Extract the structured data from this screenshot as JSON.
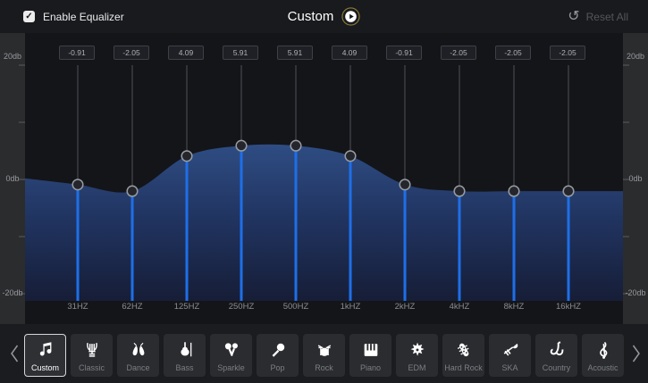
{
  "header": {
    "enable_label": "Enable Equalizer",
    "enabled": true,
    "check_glyph": "✓",
    "preset_title": "Custom",
    "reset_label": "Reset All",
    "undo_glyph": "↺"
  },
  "equalizer": {
    "axis": {
      "top": "20db",
      "mid": "0db",
      "bottom": "-20db"
    },
    "bands": [
      {
        "freq": "31HZ",
        "value": -0.91,
        "label": "-0.91"
      },
      {
        "freq": "62HZ",
        "value": -2.05,
        "label": "-2.05"
      },
      {
        "freq": "125HZ",
        "value": 4.09,
        "label": "4.09"
      },
      {
        "freq": "250HZ",
        "value": 5.91,
        "label": "5.91"
      },
      {
        "freq": "500HZ",
        "value": 5.91,
        "label": "5.91"
      },
      {
        "freq": "1kHZ",
        "value": 4.09,
        "label": "4.09"
      },
      {
        "freq": "2kHZ",
        "value": -0.91,
        "label": "-0.91"
      },
      {
        "freq": "4kHZ",
        "value": -2.05,
        "label": "-2.05"
      },
      {
        "freq": "8kHZ",
        "value": -2.05,
        "label": "-2.05"
      },
      {
        "freq": "16kHZ",
        "value": -2.05,
        "label": "-2.05"
      }
    ],
    "colors": {
      "slider_blue": "#1e6fe8",
      "fill_top": "#2f4e85",
      "fill_mid": "#20335f",
      "fill_bottom": "#161d36",
      "track_gray": "#46484c",
      "handle_ring": "#989ca2",
      "handle_fill": "#24262b"
    }
  },
  "presets": {
    "items": [
      {
        "label": "Custom",
        "icon": "music-note-icon",
        "selected": true
      },
      {
        "label": "Classic",
        "icon": "lyre-icon",
        "selected": false
      },
      {
        "label": "Dance",
        "icon": "ballet-shoes-icon",
        "selected": false
      },
      {
        "label": "Bass",
        "icon": "cello-icon",
        "selected": false
      },
      {
        "label": "Sparkle",
        "icon": "maracas-icon",
        "selected": false
      },
      {
        "label": "Pop",
        "icon": "microphone-icon",
        "selected": false
      },
      {
        "label": "Rock",
        "icon": "drum-kit-icon",
        "selected": false
      },
      {
        "label": "Piano",
        "icon": "piano-keys-icon",
        "selected": false
      },
      {
        "label": "EDM",
        "icon": "electric-guitar-icon",
        "selected": false
      },
      {
        "label": "Hard Rock",
        "icon": "guitar-headstock-icon",
        "selected": false
      },
      {
        "label": "SKA",
        "icon": "trombone-icon",
        "selected": false
      },
      {
        "label": "Country",
        "icon": "saxophone-icon",
        "selected": false
      },
      {
        "label": "Acoustic",
        "icon": "treble-clef-icon",
        "selected": false
      }
    ]
  },
  "icons": {
    "play": "play-icon",
    "reset": "undo-icon",
    "scroll_left": "chevron-left-icon",
    "scroll_right": "chevron-right-icon",
    "checkbox": "checkbox-checked-icon"
  }
}
